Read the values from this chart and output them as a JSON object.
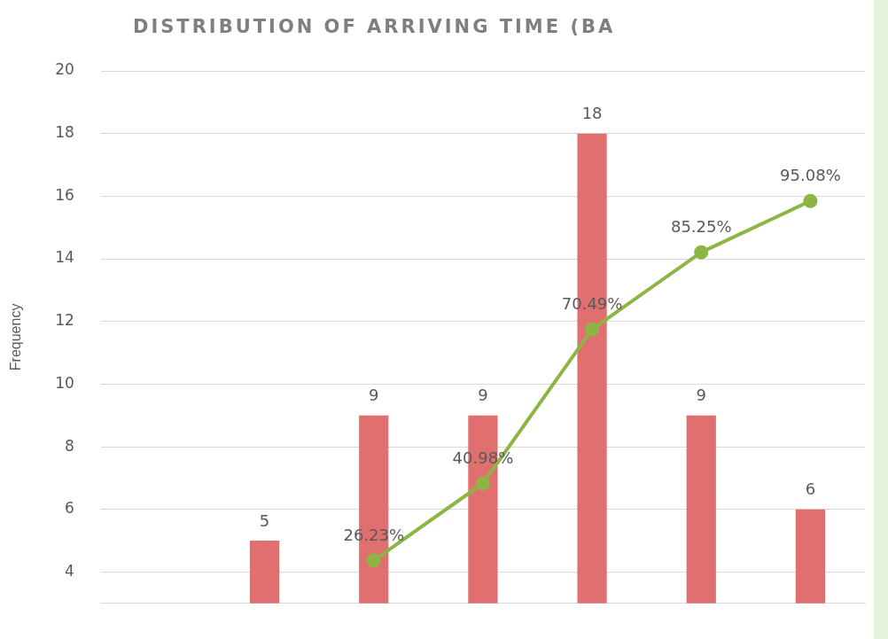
{
  "chart_data": {
    "type": "bar",
    "title": "DISTRIBUTION OF ARRIVING TIME (BA",
    "ylabel": "Frequency",
    "categories": [
      null,
      null,
      null,
      null,
      null,
      null,
      null
    ],
    "series": [
      {
        "name": null,
        "color": "#e07070",
        "values": [
          null,
          5,
          9,
          9,
          18,
          9,
          6
        ],
        "data_labels": true
      },
      {
        "name": null,
        "type": "line",
        "axis": "y2",
        "color": "#8db543",
        "values": [
          null,
          null,
          26.23,
          40.98,
          70.49,
          85.25,
          95.08
        ],
        "value_labels": [
          null,
          null,
          "26.23%",
          "40.98%",
          "70.49%",
          "85.25%",
          "95.08%"
        ]
      }
    ],
    "ylim": [
      3,
      20
    ],
    "yticks": [
      4,
      6,
      8,
      10,
      12,
      14,
      16,
      18,
      20
    ],
    "y2lim": [
      18,
      120
    ],
    "grid": "y",
    "marker": "circle",
    "legend": false
  }
}
